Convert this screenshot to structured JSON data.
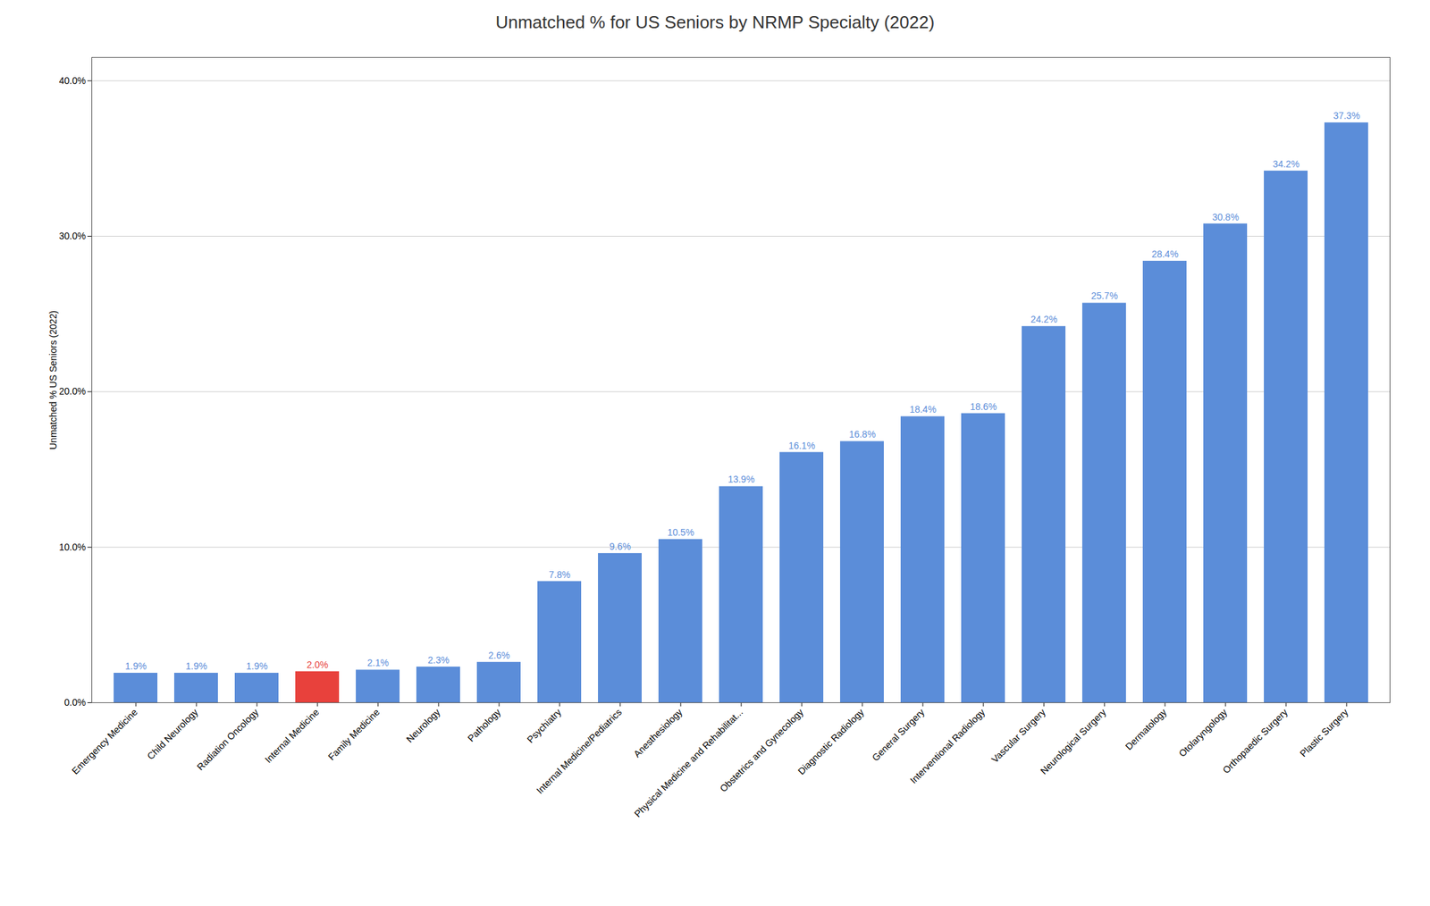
{
  "chart_data": {
    "type": "bar",
    "title": "Unmatched % for US Seniors by NRMP Specialty (2022)",
    "ylabel": "Unmatched % US Seniors (2022)",
    "categories": [
      "Emergency Medicine",
      "Child Neurology",
      "Radiation Oncology",
      "Internal Medicine",
      "Family Medicine",
      "Neurology",
      "Pathology",
      "Psychiatry",
      "Internal Medicine/Pediatrics",
      "Anesthesiology",
      "Physical Medicine and Rehabilitat...",
      "Obstetrics and Gynecology",
      "Diagnostic Radiology",
      "General Surgery",
      "Interventional Radiology",
      "Vascular Surgery",
      "Neurological Surgery",
      "Dermatology",
      "Otolaryngology",
      "Orthopaedic Surgery",
      "Plastic Surgery"
    ],
    "values": [
      1.9,
      1.9,
      1.9,
      2.0,
      2.1,
      2.3,
      2.6,
      7.8,
      9.6,
      10.5,
      13.9,
      16.1,
      16.8,
      18.4,
      18.6,
      24.2,
      25.7,
      28.4,
      30.8,
      34.2,
      37.3
    ],
    "value_labels": [
      "1.9%",
      "1.9%",
      "1.9%",
      "2.0%",
      "2.1%",
      "2.3%",
      "2.6%",
      "7.8%",
      "9.6%",
      "10.5%",
      "13.9%",
      "16.1%",
      "16.8%",
      "18.4%",
      "18.6%",
      "24.2%",
      "25.7%",
      "28.4%",
      "30.8%",
      "34.2%",
      "37.3%"
    ],
    "colors": [
      "#5B8DD9",
      "#5B8DD9",
      "#5B8DD9",
      "#E8413C",
      "#5B8DD9",
      "#5B8DD9",
      "#5B8DD9",
      "#5B8DD9",
      "#5B8DD9",
      "#5B8DD9",
      "#5B8DD9",
      "#5B8DD9",
      "#5B8DD9",
      "#5B8DD9",
      "#5B8DD9",
      "#5B8DD9",
      "#5B8DD9",
      "#5B8DD9",
      "#5B8DD9",
      "#5B8DD9",
      "#5B8DD9"
    ],
    "ylim": [
      0,
      41.5
    ],
    "yticks": [
      {
        "value": 0,
        "label": "0.0%"
      },
      {
        "value": 10,
        "label": "10.0%"
      },
      {
        "value": 20,
        "label": "20.0%"
      },
      {
        "value": 30,
        "label": "30.0%"
      },
      {
        "value": 40,
        "label": "40.0%"
      }
    ],
    "grid": true,
    "data_labels": true
  }
}
